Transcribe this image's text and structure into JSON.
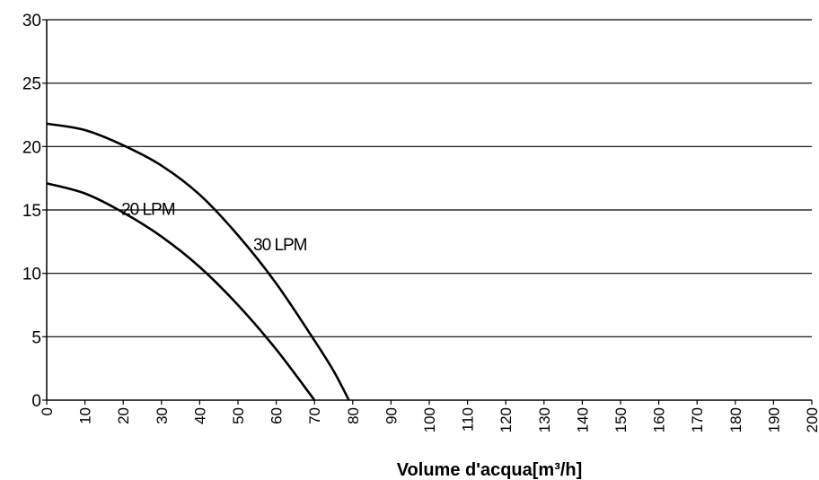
{
  "chart_data": {
    "type": "line",
    "title": "",
    "xlabel": "Volume d'acqua[m³/h]",
    "ylabel": "",
    "xlim": [
      0,
      200
    ],
    "ylim": [
      0,
      30
    ],
    "x_ticks": [
      0,
      10,
      20,
      30,
      40,
      50,
      60,
      70,
      80,
      90,
      100,
      110,
      120,
      130,
      140,
      150,
      160,
      170,
      180,
      190,
      200
    ],
    "y_ticks": [
      0,
      5,
      10,
      15,
      20,
      25,
      30
    ],
    "grid": "horizontal",
    "legend": "none",
    "series": [
      {
        "name": "20 LPM",
        "x": [
          0,
          10,
          20,
          30,
          40,
          50,
          60,
          70
        ],
        "y": [
          17.1,
          16.3,
          14.8,
          12.9,
          10.5,
          7.5,
          4.0,
          0
        ]
      },
      {
        "name": "30 LPM",
        "x": [
          0,
          10,
          20,
          30,
          40,
          50,
          60,
          70,
          75,
          79
        ],
        "y": [
          21.8,
          21.3,
          20.1,
          18.5,
          16.2,
          13.0,
          9.2,
          4.7,
          2.3,
          0
        ]
      }
    ],
    "annotations": [
      "20 LPM",
      "30 LPM"
    ],
    "colors": {
      "line": "#000000",
      "grid": "#000000",
      "background": "#ffffff"
    }
  }
}
